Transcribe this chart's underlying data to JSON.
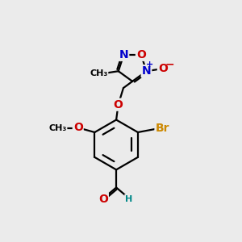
{
  "bg_color": "#ebebeb",
  "bond_color": "#000000",
  "bond_width": 1.6,
  "atom_colors": {
    "C": "#000000",
    "N": "#0000cc",
    "O": "#cc0000",
    "Br": "#cc8800",
    "H": "#008888",
    "plus": "#0000cc",
    "minus_O": "#cc0000"
  },
  "font_size": 10,
  "small_font": 8
}
